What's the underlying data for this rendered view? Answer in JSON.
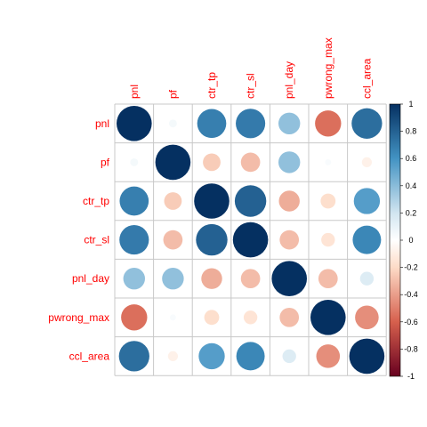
{
  "chart_data": {
    "type": "heatmap",
    "variables": [
      "pnl",
      "pf",
      "ctr_tp",
      "ctr_sl",
      "pnl_day",
      "pwrong_max",
      "ccl_area"
    ],
    "matrix": [
      [
        1.0,
        0.05,
        0.68,
        0.7,
        0.38,
        -0.55,
        0.75
      ],
      [
        0.05,
        1.0,
        -0.25,
        -0.3,
        0.38,
        0.03,
        -0.08
      ],
      [
        0.68,
        -0.25,
        1.0,
        0.8,
        -0.35,
        -0.18,
        0.55
      ],
      [
        0.7,
        -0.3,
        0.8,
        1.0,
        -0.3,
        -0.15,
        0.65
      ],
      [
        0.38,
        0.38,
        -0.35,
        -0.3,
        1.0,
        -0.3,
        0.15
      ],
      [
        -0.55,
        0.03,
        -0.18,
        -0.15,
        -0.3,
        1.0,
        -0.45
      ],
      [
        0.75,
        -0.08,
        0.55,
        0.65,
        0.15,
        -0.45,
        1.0
      ]
    ],
    "colorbar": {
      "range": [
        -1,
        1
      ],
      "ticks": [
        "1",
        "0.8",
        "0.6",
        "0.4",
        "0.2",
        "0",
        "-0.2",
        "-0.4",
        "-0.6",
        "-0.8",
        "-1"
      ],
      "colors": {
        "neg_strong": "#67001F",
        "neg_mid": "#D6604D",
        "neg_light": "#FDDBC7",
        "zero": "#FFFFFF",
        "pos_light": "#D1E5F0",
        "pos_mid": "#4393C3",
        "pos_strong": "#053061"
      }
    },
    "glyph": "circle",
    "label_color": "#FF0000",
    "grid": true
  }
}
